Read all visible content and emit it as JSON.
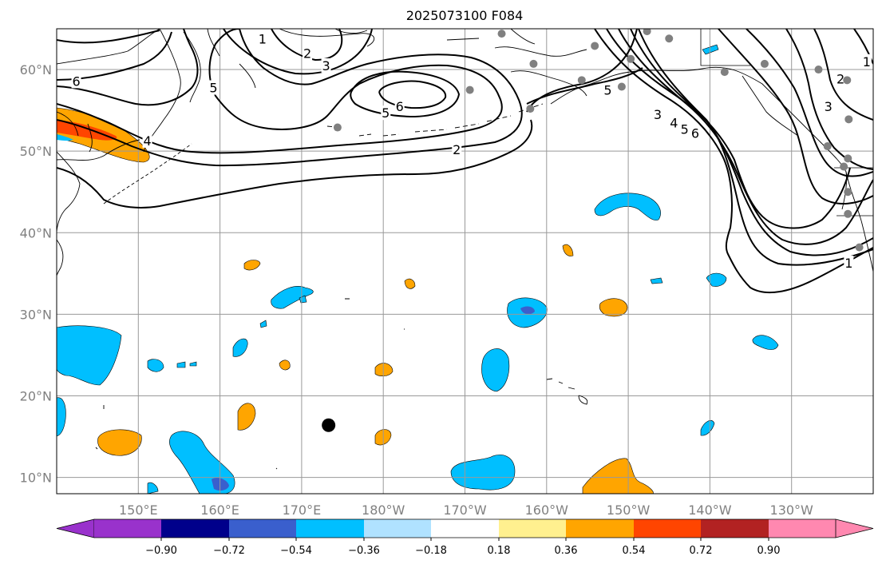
{
  "map": {
    "title": "2025073100 F084",
    "extent": {
      "lon_min": 140,
      "lon_max": 240,
      "lat_min": 8,
      "lat_max": 65
    },
    "lat_ticks": [
      {
        "lat": 10,
        "label": "10°N"
      },
      {
        "lat": 20,
        "label": "20°N"
      },
      {
        "lat": 30,
        "label": "30°N"
      },
      {
        "lat": 40,
        "label": "40°N"
      },
      {
        "lat": 50,
        "label": "50°N"
      },
      {
        "lat": 60,
        "label": "60°N"
      }
    ],
    "lon_ticks": [
      {
        "lon": 150,
        "label": "150°E"
      },
      {
        "lon": 160,
        "label": "160°E"
      },
      {
        "lon": 170,
        "label": "170°E"
      },
      {
        "lon": 180,
        "label": "180°W"
      },
      {
        "lon": 190,
        "label": "170°W"
      },
      {
        "lon": 200,
        "label": "160°W"
      },
      {
        "lon": 210,
        "label": "150°W"
      },
      {
        "lon": 220,
        "label": "140°W"
      },
      {
        "lon": 230,
        "label": "130°W"
      }
    ],
    "contour_labels": [
      {
        "text": "1",
        "lon": 165.2,
        "lat": 63.8
      },
      {
        "text": "2",
        "lon": 170.7,
        "lat": 62.0
      },
      {
        "text": "3",
        "lon": 173.0,
        "lat": 60.5
      },
      {
        "text": "6",
        "lon": 142.4,
        "lat": 58.6
      },
      {
        "text": "5",
        "lon": 159.2,
        "lat": 57.8
      },
      {
        "text": "4",
        "lon": 151.1,
        "lat": 51.3
      },
      {
        "text": "5",
        "lon": 180.3,
        "lat": 54.7
      },
      {
        "text": "6",
        "lon": 182.0,
        "lat": 55.5
      },
      {
        "text": "2",
        "lon": 189.0,
        "lat": 50.2
      },
      {
        "text": "3",
        "lon": 213.6,
        "lat": 54.5
      },
      {
        "text": "4",
        "lon": 215.6,
        "lat": 53.5
      },
      {
        "text": "5",
        "lon": 216.9,
        "lat": 52.7
      },
      {
        "text": "6",
        "lon": 218.2,
        "lat": 52.2
      },
      {
        "text": "5",
        "lon": 207.5,
        "lat": 57.5
      },
      {
        "text": "3",
        "lon": 234.5,
        "lat": 55.5
      },
      {
        "text": "2",
        "lon": 236.0,
        "lat": 58.9
      },
      {
        "text": "1",
        "lon": 237.0,
        "lat": 36.3
      },
      {
        "text": "1",
        "lon": 239.2,
        "lat": 61.0
      }
    ],
    "gray_dots": [
      {
        "lon": 194.5,
        "lat": 64.4
      },
      {
        "lon": 212.3,
        "lat": 64.7
      },
      {
        "lon": 215.0,
        "lat": 63.8
      },
      {
        "lon": 205.9,
        "lat": 62.9
      },
      {
        "lon": 198.4,
        "lat": 60.7
      },
      {
        "lon": 210.3,
        "lat": 61.3
      },
      {
        "lon": 204.3,
        "lat": 58.7
      },
      {
        "lon": 209.2,
        "lat": 57.9
      },
      {
        "lon": 198.0,
        "lat": 55.2
      },
      {
        "lon": 226.7,
        "lat": 60.7
      },
      {
        "lon": 233.3,
        "lat": 60.0
      },
      {
        "lon": 236.8,
        "lat": 58.7
      },
      {
        "lon": 221.8,
        "lat": 59.7
      },
      {
        "lon": 237.0,
        "lat": 53.9
      },
      {
        "lon": 234.4,
        "lat": 50.6
      },
      {
        "lon": 236.4,
        "lat": 48.1
      },
      {
        "lon": 236.9,
        "lat": 49.1
      },
      {
        "lon": 236.9,
        "lat": 45.0
      },
      {
        "lon": 236.9,
        "lat": 42.3
      },
      {
        "lon": 238.3,
        "lat": 38.2
      },
      {
        "lon": 174.4,
        "lat": 52.9
      },
      {
        "lon": 190.6,
        "lat": 57.5
      }
    ],
    "black_dot": {
      "lon": 173.3,
      "lat": 16.4
    },
    "shading": {
      "light_blue": "#00bfff",
      "medium_blue": "#3a5fcd",
      "orange": "#ffa500",
      "orange_red": "#ff4500"
    },
    "colorbar": {
      "labels": [
        "−0.90",
        "−0.72",
        "−0.54",
        "−0.36",
        "−0.18",
        "0.18",
        "0.36",
        "0.54",
        "0.72",
        "0.90"
      ],
      "colors": [
        "#9932cc",
        "#00008b",
        "#3a5fcd",
        "#00bfff",
        "#b0e2ff",
        "#ffffff",
        "#fff08f",
        "#ffa500",
        "#ff4500",
        "#b22222",
        "#ff88b0",
        "#ff88b0"
      ]
    }
  }
}
